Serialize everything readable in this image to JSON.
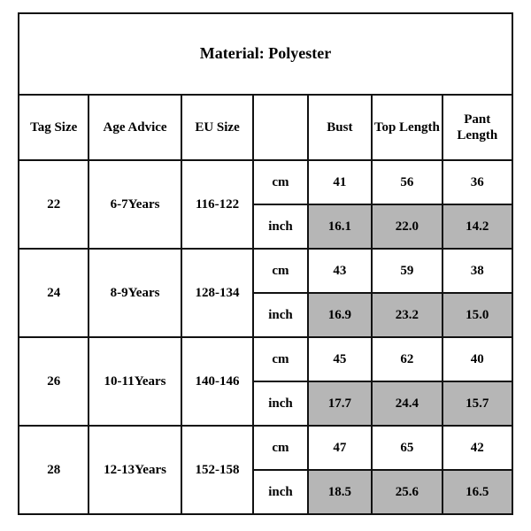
{
  "title": "Material: Polyester",
  "colors": {
    "background": "#ffffff",
    "text": "#000000",
    "border": "#111111",
    "shade": "#b6b6b6"
  },
  "typography": {
    "family": "Times New Roman",
    "title_fontsize_pt": 14,
    "cell_fontsize_pt": 11,
    "weight": "bold"
  },
  "headers": {
    "tag_size": "Tag Size",
    "age_advice": "Age Advice",
    "eu_size": "EU Size",
    "unit_blank": "",
    "bust": "Bust",
    "top_length": "Top Length",
    "pant_length": "Pant Length"
  },
  "units": {
    "cm": "cm",
    "inch": "inch"
  },
  "rows": [
    {
      "tag_size": "22",
      "age_advice": "6-7Years",
      "eu_size": "116-122",
      "cm": {
        "bust": "41",
        "top_length": "56",
        "pant_length": "36"
      },
      "inch": {
        "bust": "16.1",
        "top_length": "22.0",
        "pant_length": "14.2"
      }
    },
    {
      "tag_size": "24",
      "age_advice": "8-9Years",
      "eu_size": "128-134",
      "cm": {
        "bust": "43",
        "top_length": "59",
        "pant_length": "38"
      },
      "inch": {
        "bust": "16.9",
        "top_length": "23.2",
        "pant_length": "15.0"
      }
    },
    {
      "tag_size": "26",
      "age_advice": "10-11Years",
      "eu_size": "140-146",
      "cm": {
        "bust": "45",
        "top_length": "62",
        "pant_length": "40"
      },
      "inch": {
        "bust": "17.7",
        "top_length": "24.4",
        "pant_length": "15.7"
      }
    },
    {
      "tag_size": "28",
      "age_advice": "12-13Years",
      "eu_size": "152-158",
      "cm": {
        "bust": "47",
        "top_length": "65",
        "pant_length": "42"
      },
      "inch": {
        "bust": "18.5",
        "top_length": "25.6",
        "pant_length": "16.5"
      }
    }
  ]
}
